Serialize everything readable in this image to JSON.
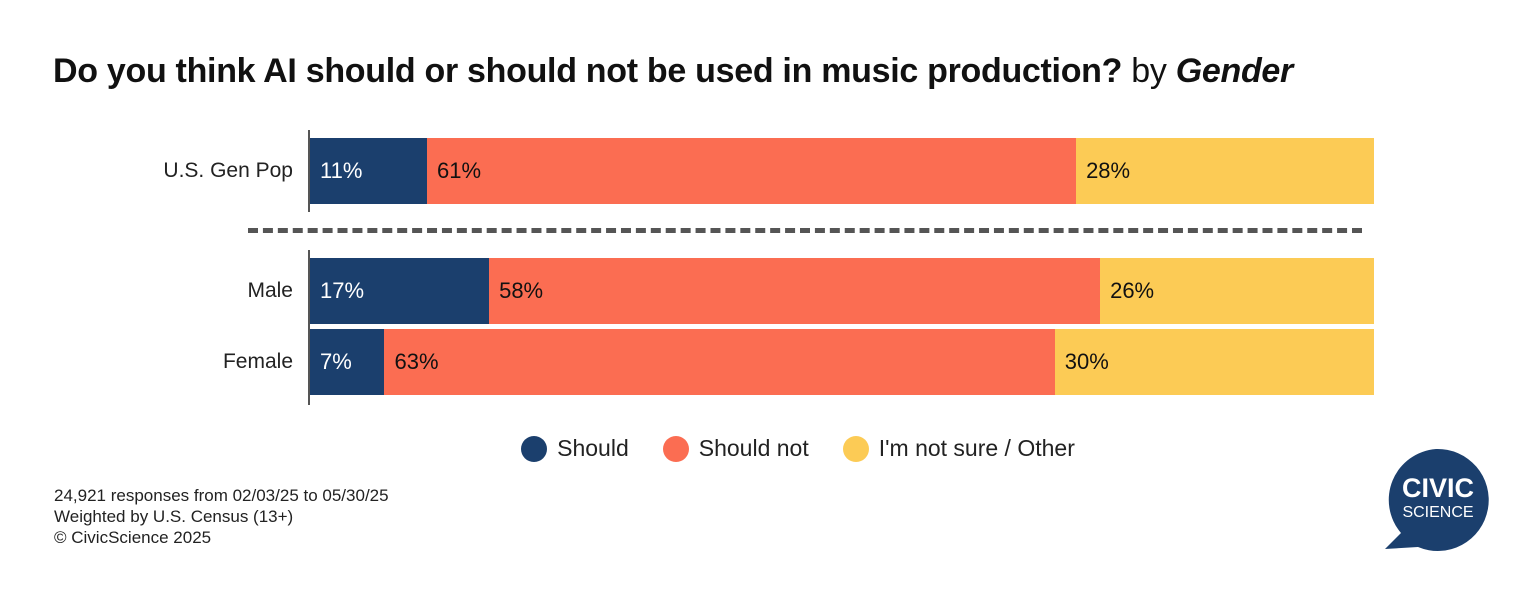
{
  "title": {
    "question": "Do you think AI should or should not be used in music production?",
    "by": "by",
    "dimension": "Gender"
  },
  "colors": {
    "should": "#1b3f6d",
    "should_not": "#fb6d52",
    "not_sure": "#fccb55",
    "divider": "#555555"
  },
  "chart_data": {
    "type": "bar",
    "orientation": "horizontal",
    "stacked": true,
    "categories": [
      "U.S. Gen Pop",
      "Male",
      "Female"
    ],
    "series": [
      {
        "name": "Should",
        "values": [
          11,
          17,
          7
        ],
        "labels": [
          "11%",
          "17%",
          "7%"
        ]
      },
      {
        "name": "Should not",
        "values": [
          61,
          58,
          63
        ],
        "labels": [
          "61%",
          "58%",
          "63%"
        ]
      },
      {
        "name": "I'm not sure / Other",
        "values": [
          28,
          26,
          30
        ],
        "labels": [
          "28%",
          "26%",
          "30%"
        ]
      }
    ],
    "xlim": [
      0,
      100
    ],
    "legend_position": "bottom"
  },
  "legend": [
    {
      "label": "Should",
      "color": "#1b3f6d"
    },
    {
      "label": "Should not",
      "color": "#fb6d52"
    },
    {
      "label": "I'm not sure / Other",
      "color": "#fccb55"
    }
  ],
  "footnotes": [
    "24,921 responses from 02/03/25 to 05/30/25",
    "Weighted by U.S. Census (13+)",
    "© CivicScience 2025"
  ],
  "logo": {
    "line1": "CIVIC",
    "line2": "SCIENCE",
    "color": "#1b3f6d"
  }
}
